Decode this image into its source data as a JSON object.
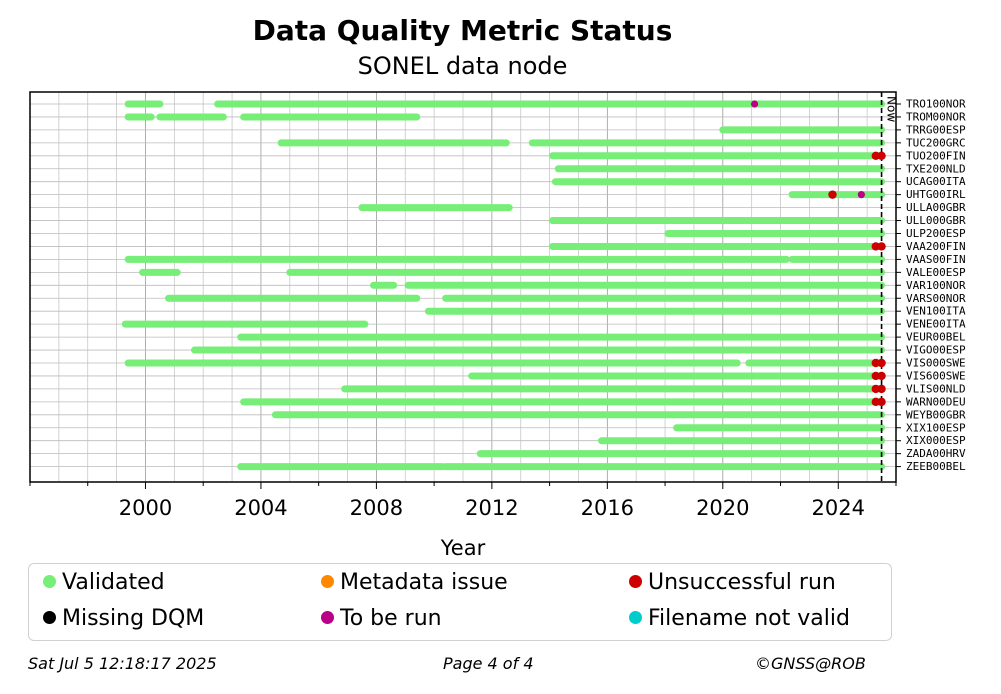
{
  "chart_data": {
    "type": "timeline",
    "title": "Data Quality Metric Status",
    "subtitle": "SONEL data node",
    "xlabel": "Year",
    "xlim": [
      1996.0,
      2026.0
    ],
    "xticks": [
      2000,
      2004,
      2008,
      2012,
      2016,
      2020,
      2024
    ],
    "now": 2025.5,
    "now_label": "Now",
    "grid": true,
    "colors": {
      "validated": "#77ee77",
      "metadata": "#ff8800",
      "missing": "#000000",
      "to_be_run": "#bb0088",
      "unsuccessful": "#cc0000",
      "filename": "#00cccc"
    },
    "stations": [
      {
        "name": "TRO100NOR",
        "segments": [
          [
            1999.4,
            2000.5
          ],
          [
            2002.5,
            2025.5
          ]
        ],
        "points": [
          {
            "x": 2021.1,
            "status": "to_be_run"
          }
        ]
      },
      {
        "name": "TROM00NOR",
        "segments": [
          [
            1999.4,
            2000.2
          ],
          [
            2000.5,
            2002.7
          ],
          [
            2003.4,
            2009.4
          ]
        ],
        "points": []
      },
      {
        "name": "TRRG00ESP",
        "segments": [
          [
            2020.0,
            2025.5
          ]
        ],
        "points": []
      },
      {
        "name": "TUC200GRC",
        "segments": [
          [
            2004.7,
            2012.5
          ],
          [
            2013.4,
            2025.5
          ]
        ],
        "points": []
      },
      {
        "name": "TUO200FIN",
        "segments": [
          [
            2014.1,
            2025.5
          ]
        ],
        "points": [
          {
            "x": 2025.3,
            "status": "unsuccessful"
          },
          {
            "x": 2025.5,
            "status": "unsuccessful"
          }
        ]
      },
      {
        "name": "TXE200NLD",
        "segments": [
          [
            2014.3,
            2025.5
          ]
        ],
        "points": []
      },
      {
        "name": "UCAG00ITA",
        "segments": [
          [
            2014.2,
            2025.5
          ]
        ],
        "points": []
      },
      {
        "name": "UHTG00IRL",
        "segments": [
          [
            2022.4,
            2025.5
          ]
        ],
        "points": [
          {
            "x": 2023.8,
            "status": "unsuccessful"
          },
          {
            "x": 2024.8,
            "status": "to_be_run"
          }
        ]
      },
      {
        "name": "ULLA00GBR",
        "segments": [
          [
            2007.5,
            2012.6
          ]
        ],
        "points": []
      },
      {
        "name": "ULL000GBR",
        "segments": [
          [
            2014.1,
            2025.5
          ]
        ],
        "points": []
      },
      {
        "name": "ULP200ESP",
        "segments": [
          [
            2018.1,
            2025.5
          ]
        ],
        "points": []
      },
      {
        "name": "VAA200FIN",
        "segments": [
          [
            2014.1,
            2025.5
          ]
        ],
        "points": [
          {
            "x": 2025.3,
            "status": "unsuccessful"
          },
          {
            "x": 2025.5,
            "status": "unsuccessful"
          }
        ]
      },
      {
        "name": "VAAS00FIN",
        "segments": [
          [
            1999.4,
            2022.2
          ],
          [
            2022.4,
            2025.5
          ]
        ],
        "points": []
      },
      {
        "name": "VALE00ESP",
        "segments": [
          [
            1999.9,
            2001.1
          ],
          [
            2005.0,
            2025.5
          ]
        ],
        "points": []
      },
      {
        "name": "VAR100NOR",
        "segments": [
          [
            2007.9,
            2008.6
          ],
          [
            2009.1,
            2025.5
          ]
        ],
        "points": []
      },
      {
        "name": "VARS00NOR",
        "segments": [
          [
            2000.8,
            2009.4
          ],
          [
            2010.4,
            2025.5
          ]
        ],
        "points": []
      },
      {
        "name": "VEN100ITA",
        "segments": [
          [
            2009.8,
            2025.5
          ]
        ],
        "points": []
      },
      {
        "name": "VENE00ITA",
        "segments": [
          [
            1999.3,
            2007.6
          ]
        ],
        "points": []
      },
      {
        "name": "VEUR00BEL",
        "segments": [
          [
            2003.3,
            2025.5
          ]
        ],
        "points": []
      },
      {
        "name": "VIGO00ESP",
        "segments": [
          [
            2001.7,
            2025.5
          ]
        ],
        "points": []
      },
      {
        "name": "VIS000SWE",
        "segments": [
          [
            1999.4,
            2020.5
          ],
          [
            2020.9,
            2025.5
          ]
        ],
        "points": [
          {
            "x": 2025.3,
            "status": "unsuccessful"
          },
          {
            "x": 2025.5,
            "status": "unsuccessful"
          }
        ]
      },
      {
        "name": "VIS600SWE",
        "segments": [
          [
            2011.3,
            2025.5
          ]
        ],
        "points": [
          {
            "x": 2025.3,
            "status": "unsuccessful"
          },
          {
            "x": 2025.5,
            "status": "unsuccessful"
          }
        ]
      },
      {
        "name": "VLIS00NLD",
        "segments": [
          [
            2006.9,
            2025.5
          ]
        ],
        "points": [
          {
            "x": 2025.3,
            "status": "unsuccessful"
          },
          {
            "x": 2025.5,
            "status": "unsuccessful"
          }
        ]
      },
      {
        "name": "WARN00DEU",
        "segments": [
          [
            2003.4,
            2025.5
          ]
        ],
        "points": [
          {
            "x": 2025.3,
            "status": "unsuccessful"
          },
          {
            "x": 2025.5,
            "status": "unsuccessful"
          }
        ]
      },
      {
        "name": "WEYB00GBR",
        "segments": [
          [
            2004.5,
            2025.5
          ]
        ],
        "points": []
      },
      {
        "name": "XIX100ESP",
        "segments": [
          [
            2018.4,
            2025.5
          ]
        ],
        "points": []
      },
      {
        "name": "XIX000ESP",
        "segments": [
          [
            2015.8,
            2025.5
          ]
        ],
        "points": []
      },
      {
        "name": "ZADA00HRV",
        "segments": [
          [
            2011.6,
            2025.5
          ]
        ],
        "points": []
      },
      {
        "name": "ZEEB00BEL",
        "segments": [
          [
            2003.3,
            2010.3
          ],
          [
            2010.4,
            2025.5
          ]
        ],
        "points": []
      }
    ]
  },
  "legend": {
    "items": [
      {
        "label": "Validated",
        "color": "#77ee77"
      },
      {
        "label": "Metadata issue",
        "color": "#ff8800"
      },
      {
        "label": "Unsuccessful run",
        "color": "#cc0000"
      },
      {
        "label": "Missing DQM",
        "color": "#000000"
      },
      {
        "label": "To be run",
        "color": "#bb0088"
      },
      {
        "label": "Filename not valid",
        "color": "#00cccc"
      }
    ]
  },
  "footer": {
    "timestamp": "Sat Jul  5 12:18:17 2025",
    "page": "Page 4 of 4",
    "copyright": "©GNSS@ROB"
  }
}
